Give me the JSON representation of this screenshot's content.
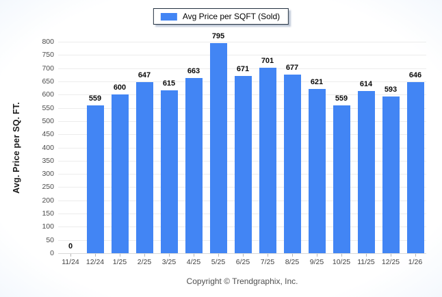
{
  "legend": {
    "label": "Avg Price per SQFT (Sold)",
    "swatch_color": "#4285f4"
  },
  "footer": {
    "copyright_text": "Copyright © Trendgraphix, Inc."
  },
  "colors": {
    "bar": "#4285f4",
    "gridline": "#ececec",
    "baseline": "#d9d9d9",
    "axis_text": "#3f3f3f",
    "value_label": "#0a0a0a"
  },
  "chart_data": {
    "type": "bar",
    "title": "",
    "xlabel": "",
    "ylabel": "Avg. Price per SQ. FT.",
    "categories": [
      "11/24",
      "12/24",
      "1/25",
      "2/25",
      "3/25",
      "4/25",
      "5/25",
      "6/25",
      "7/25",
      "8/25",
      "9/25",
      "10/25",
      "11/25",
      "12/25",
      "1/26"
    ],
    "series": [
      {
        "name": "Avg Price per SQFT (Sold)",
        "values": [
          0,
          559,
          600,
          647,
          615,
          663,
          795,
          671,
          701,
          677,
          621,
          559,
          614,
          593,
          646
        ]
      }
    ],
    "ylim": [
      0,
      800
    ],
    "ytick_step": 50,
    "grid": true,
    "legend_position": "top-center",
    "bar_color": "#4285f4"
  }
}
